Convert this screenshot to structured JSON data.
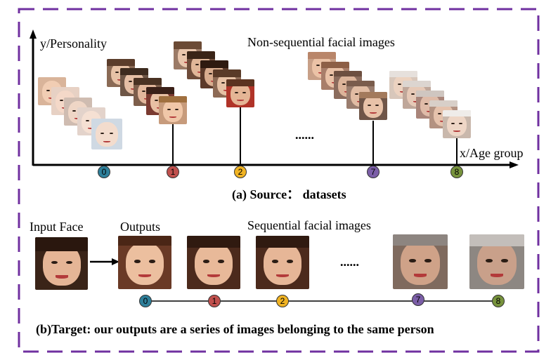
{
  "panel_a": {
    "y_axis_label": "y/Personality",
    "x_axis_label": "x/Age group",
    "group_title": "Non-sequential facial images",
    "ellipsis": "......",
    "caption": "(a) Source： datasets",
    "age_markers": [
      {
        "label": "0",
        "color": "#2e7f9a"
      },
      {
        "label": "1",
        "color": "#c0504d"
      },
      {
        "label": "2",
        "color": "#f0b323"
      },
      {
        "label": "7",
        "color": "#7b5ea7"
      },
      {
        "label": "8",
        "color": "#77933c"
      }
    ]
  },
  "panel_b": {
    "input_label": "Input Face",
    "outputs_label": "Outputs",
    "group_title": "Sequential facial images",
    "ellipsis": "......",
    "caption": "(b)Target: our outputs are a series of images belonging to the same person",
    "age_markers": [
      {
        "label": "0",
        "color": "#2e7f9a"
      },
      {
        "label": "1",
        "color": "#c0504d"
      },
      {
        "label": "2",
        "color": "#f0b323"
      },
      {
        "label": "7",
        "color": "#7b5ea7"
      },
      {
        "label": "8",
        "color": "#77933c"
      }
    ]
  },
  "colors": {
    "frame_border": "#7030a0"
  }
}
